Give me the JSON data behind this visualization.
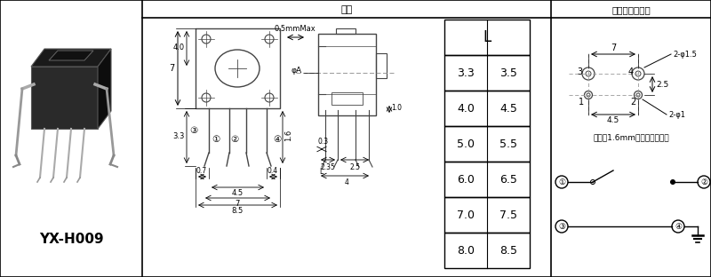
{
  "model": "YX-H009",
  "section1_title": "尺寸",
  "section2_title": "安装图及电路图",
  "table_header": "L",
  "table_data": [
    [
      "3.3",
      "3.5"
    ],
    [
      "4.0",
      "4.5"
    ],
    [
      "5.0",
      "5.5"
    ],
    [
      "6.0",
      "6.5"
    ],
    [
      "7.0",
      "7.5"
    ],
    [
      "8.0",
      "8.5"
    ]
  ],
  "note": "请使用1.6mm厉的印刷电路板",
  "bg_color": "#ffffff",
  "border_color": "#000000",
  "line_color": "#444444"
}
